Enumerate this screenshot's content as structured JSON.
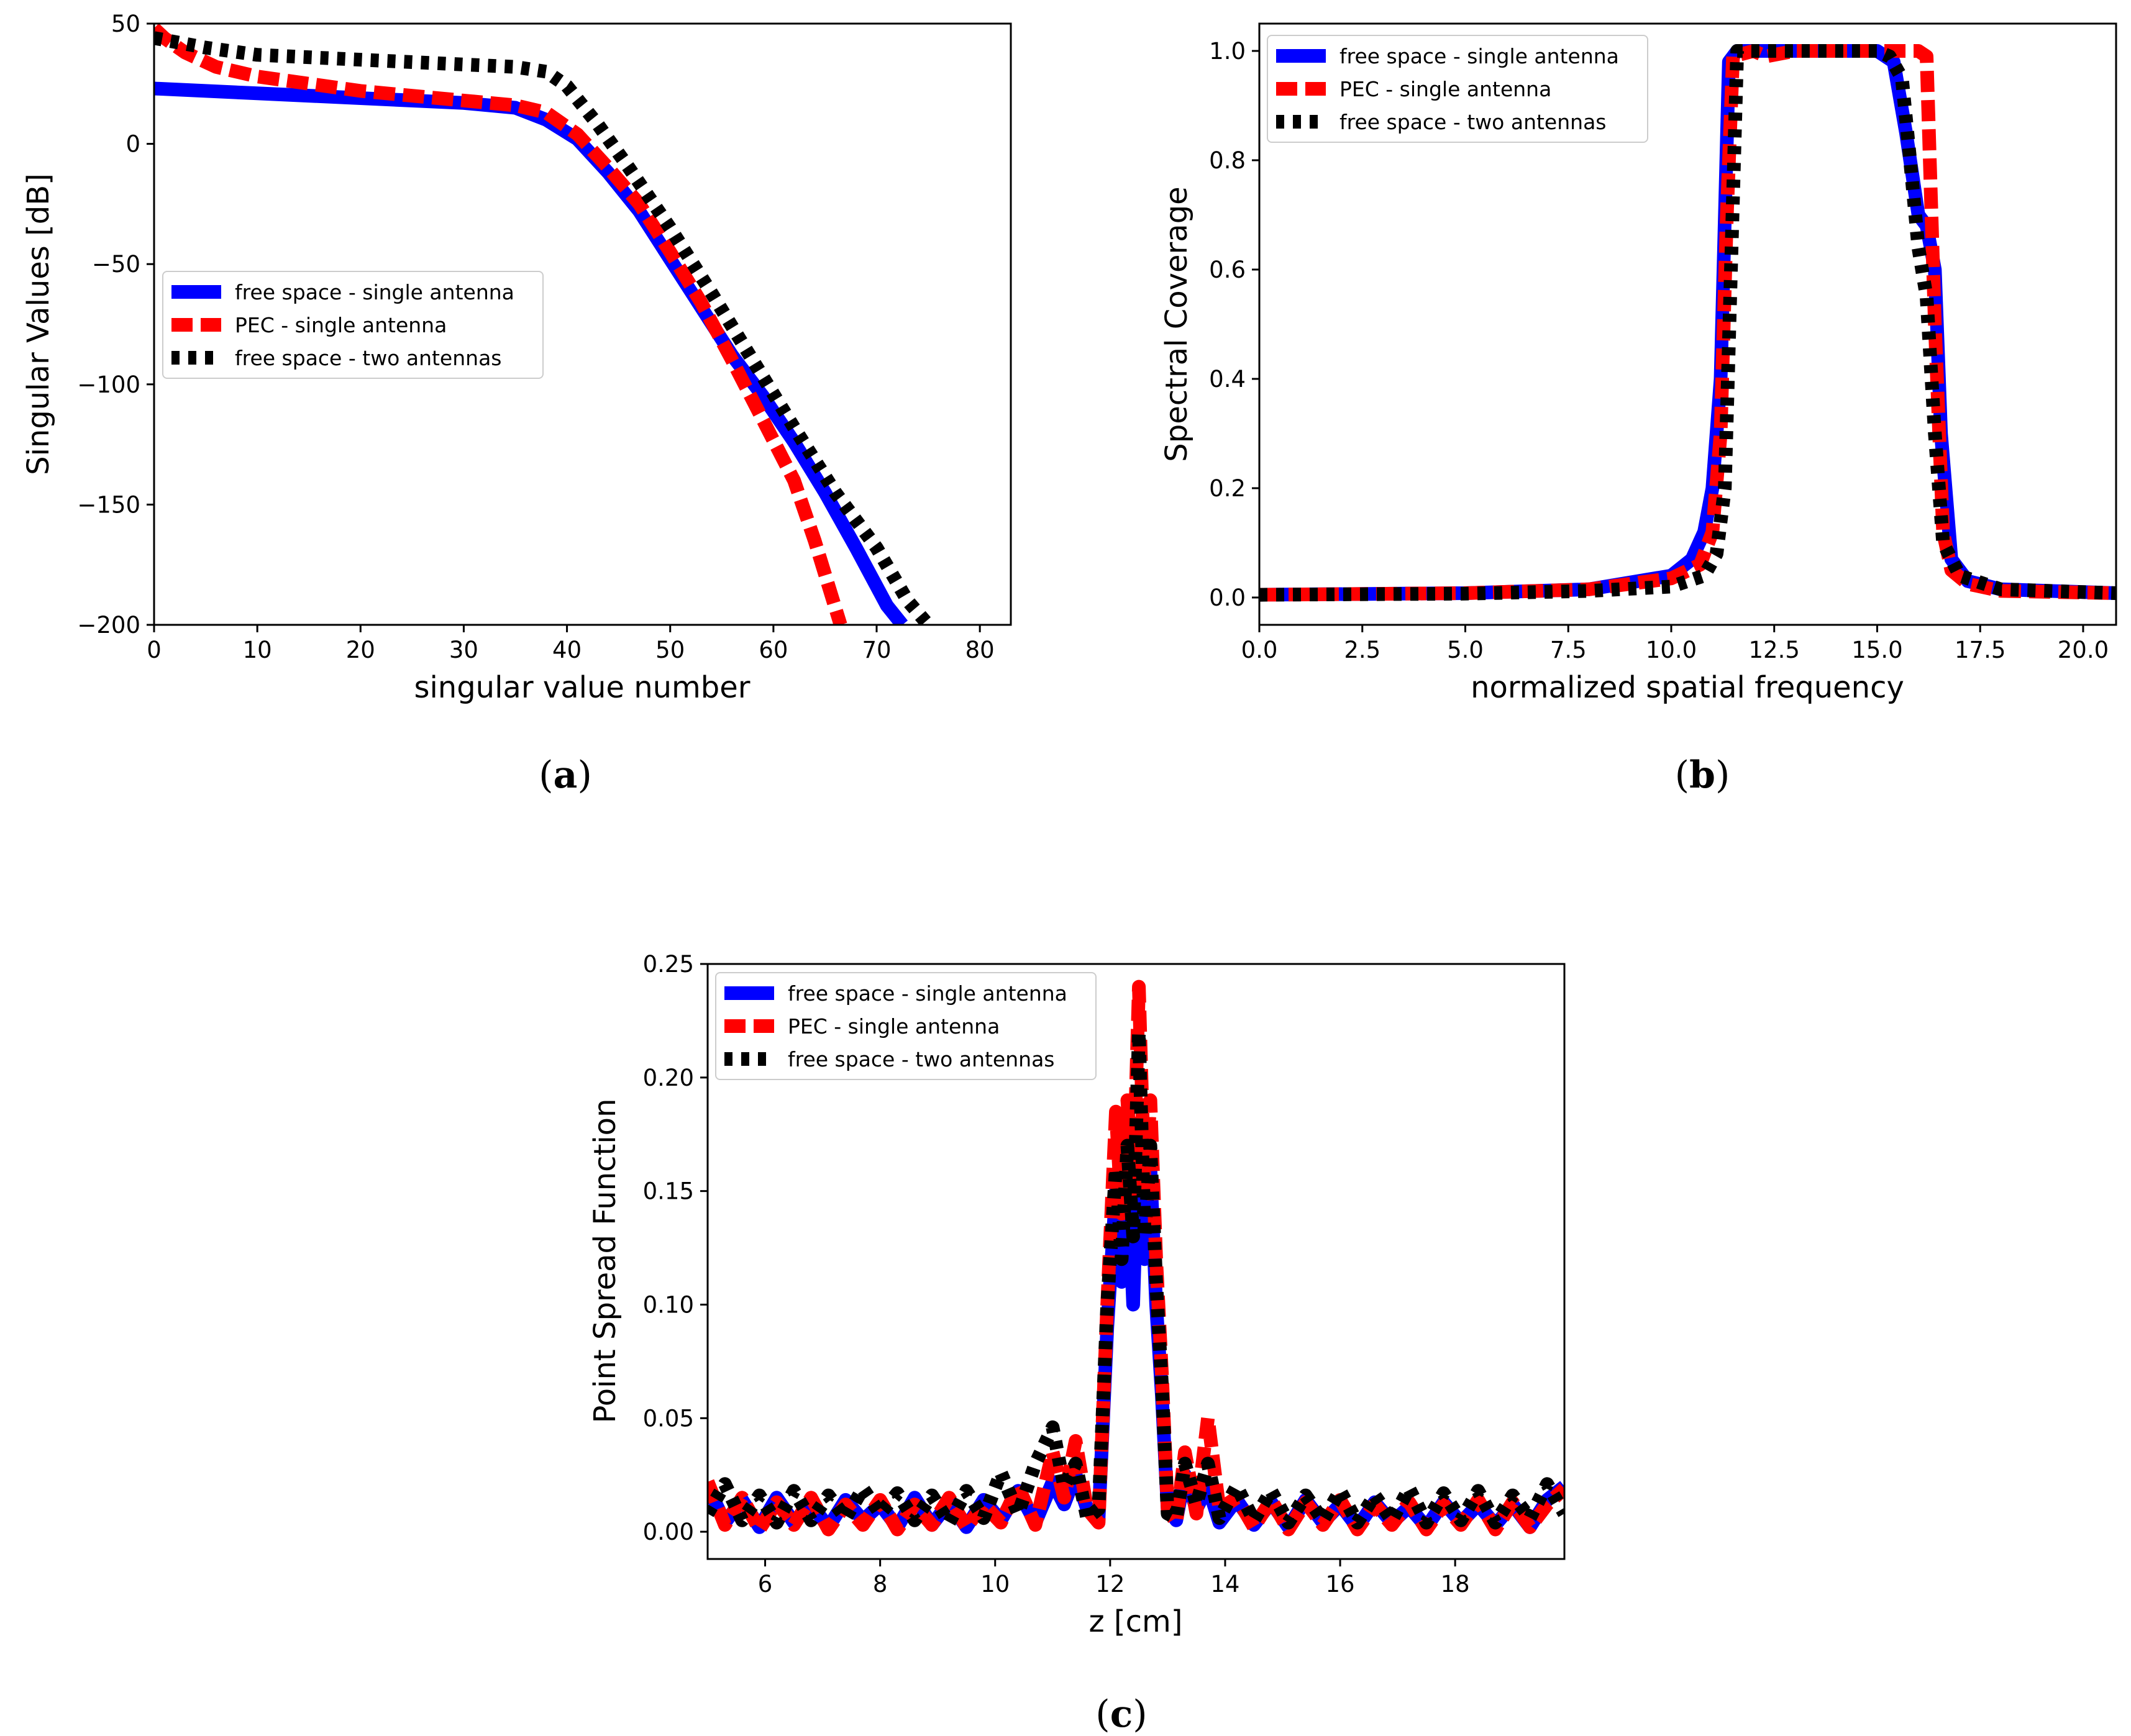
{
  "colors": {
    "blue": "#0000ff",
    "red": "#ff0000",
    "black": "#000000"
  },
  "legend": [
    "free space - single antenna",
    "PEC - single antenna",
    "free space - two antennas"
  ],
  "chart_data": [
    {
      "id": "a",
      "type": "line",
      "caption": {
        "open": "(",
        "letter": "a",
        "close": ")"
      },
      "xlabel": "singular value number",
      "ylabel": "Singular Values [dB]",
      "xlim": [
        0,
        83
      ],
      "ylim": [
        -200,
        50
      ],
      "xticks": [
        0,
        10,
        20,
        30,
        40,
        50,
        60,
        70,
        80
      ],
      "xtick_labels": [
        "0",
        "10",
        "20",
        "30",
        "40",
        "50",
        "60",
        "70",
        "80"
      ],
      "yticks": [
        50,
        0,
        -50,
        -100,
        -150,
        -200
      ],
      "ytick_labels": [
        "50",
        "0",
        "−50",
        "−100",
        "−150",
        "−200"
      ],
      "legend_position": "center-left",
      "series": [
        {
          "name": "free space - single antenna",
          "style": "solid",
          "x": [
            0,
            10,
            20,
            30,
            35,
            38,
            41,
            44,
            47,
            50,
            53,
            56,
            59,
            62,
            65,
            68,
            71,
            72.5
          ],
          "y": [
            23,
            21,
            19,
            17,
            15,
            10,
            2,
            -12,
            -28,
            -48,
            -68,
            -88,
            -105,
            -124,
            -145,
            -168,
            -192,
            -200
          ]
        },
        {
          "name": "PEC - single antenna",
          "style": "dashed",
          "x": [
            0,
            1,
            3,
            6,
            10,
            15,
            20,
            25,
            30,
            35,
            38,
            41,
            44,
            47,
            50,
            53,
            56,
            59,
            62,
            64,
            66.5
          ],
          "y": [
            48,
            44,
            38,
            32,
            28,
            25,
            22,
            20,
            18,
            16,
            13,
            4,
            -10,
            -25,
            -45,
            -66,
            -90,
            -115,
            -140,
            -165,
            -200
          ]
        },
        {
          "name": "free space - two antennas",
          "style": "dotted",
          "x": [
            0,
            5,
            10,
            20,
            30,
            35,
            38,
            40,
            43,
            46,
            50,
            54,
            58,
            62,
            66,
            70,
            73,
            75
          ],
          "y": [
            44,
            40,
            37,
            35,
            33,
            32,
            30,
            24,
            8,
            -10,
            -35,
            -62,
            -90,
            -118,
            -145,
            -168,
            -190,
            -200
          ]
        }
      ]
    },
    {
      "id": "b",
      "type": "line",
      "caption": {
        "open": "(",
        "letter": "b",
        "close": ")"
      },
      "xlabel": "normalized spatial frequency",
      "ylabel": "Spectral Coverage",
      "xlim": [
        0,
        20.8
      ],
      "ylim": [
        -0.05,
        1.05
      ],
      "xticks": [
        0,
        2.5,
        5,
        7.5,
        10,
        12.5,
        15,
        17.5,
        20
      ],
      "xtick_labels": [
        "0.0",
        "2.5",
        "5.0",
        "7.5",
        "10.0",
        "12.5",
        "15.0",
        "17.5",
        "20.0"
      ],
      "yticks": [
        0,
        0.2,
        0.4,
        0.6,
        0.8,
        1.0
      ],
      "ytick_labels": [
        "0.0",
        "0.2",
        "0.4",
        "0.6",
        "0.8",
        "1.0"
      ],
      "legend_position": "top-left",
      "series": [
        {
          "name": "free space - single antenna",
          "style": "solid",
          "x": [
            0,
            5,
            8,
            10,
            10.5,
            10.8,
            11,
            11.2,
            11.4,
            11.6,
            15,
            15.4,
            15.7,
            16,
            16.2,
            16.4,
            16.55,
            16.8,
            17.2,
            18,
            20.8
          ],
          "y": [
            0.005,
            0.008,
            0.015,
            0.04,
            0.07,
            0.12,
            0.2,
            0.4,
            0.98,
            1.0,
            1.0,
            0.98,
            0.85,
            0.7,
            0.68,
            0.6,
            0.3,
            0.07,
            0.03,
            0.015,
            0.008
          ]
        },
        {
          "name": "PEC - single antenna",
          "style": "dashed",
          "x": [
            0,
            5,
            8,
            10,
            10.7,
            11,
            11.2,
            11.35,
            11.5,
            12,
            12.3,
            13,
            15,
            16,
            16.2,
            16.4,
            16.6,
            16.8,
            17.2,
            18,
            20.8
          ],
          "y": [
            0.005,
            0.008,
            0.015,
            0.035,
            0.06,
            0.12,
            0.3,
            0.7,
            0.99,
            1.0,
            0.99,
            1.0,
            1.0,
            1.0,
            0.99,
            0.5,
            0.12,
            0.05,
            0.025,
            0.012,
            0.008
          ]
        },
        {
          "name": "free space - two antennas",
          "style": "dotted",
          "x": [
            0,
            5,
            8,
            10,
            10.8,
            11.1,
            11.3,
            11.45,
            11.6,
            15,
            15.3,
            15.6,
            15.8,
            16,
            16.2,
            16.4,
            16.6,
            17,
            18,
            20.8
          ],
          "y": [
            0.005,
            0.007,
            0.012,
            0.02,
            0.04,
            0.08,
            0.2,
            0.6,
            1.0,
            1.0,
            0.99,
            0.95,
            0.8,
            0.64,
            0.55,
            0.3,
            0.1,
            0.04,
            0.015,
            0.008
          ]
        }
      ]
    },
    {
      "id": "c",
      "type": "line",
      "caption": {
        "open": "(",
        "letter": "c",
        "close": ")"
      },
      "xlabel": "z [cm]",
      "ylabel": "Point Spread Function",
      "xlim": [
        5,
        19.9
      ],
      "ylim": [
        -0.012,
        0.25
      ],
      "xticks": [
        6,
        8,
        10,
        12,
        14,
        16,
        18
      ],
      "xtick_labels": [
        "6",
        "8",
        "10",
        "12",
        "14",
        "16",
        "18"
      ],
      "yticks": [
        0,
        0.05,
        0.1,
        0.15,
        0.2,
        0.25
      ],
      "ytick_labels": [
        "0.00",
        "0.05",
        "0.10",
        "0.15",
        "0.20",
        "0.25"
      ],
      "legend_position": "top-left",
      "series": [
        {
          "name": "free space - single antenna",
          "style": "solid",
          "x": [
            5.0,
            5.3,
            5.6,
            5.9,
            6.2,
            6.5,
            6.8,
            7.1,
            7.4,
            7.7,
            8.0,
            8.3,
            8.6,
            8.9,
            9.2,
            9.5,
            9.8,
            10.1,
            10.4,
            10.7,
            11.0,
            11.2,
            11.4,
            11.6,
            11.8,
            11.95,
            12.1,
            12.2,
            12.3,
            12.4,
            12.5,
            12.6,
            12.7,
            12.8,
            12.9,
            13.0,
            13.15,
            13.3,
            13.5,
            13.7,
            13.9,
            14.2,
            14.5,
            14.8,
            15.1,
            15.4,
            15.7,
            16.0,
            16.3,
            16.6,
            16.9,
            17.2,
            17.5,
            17.8,
            18.1,
            18.4,
            18.7,
            19.0,
            19.3,
            19.6,
            19.9
          ],
          "y": [
            0.02,
            0.004,
            0.014,
            0.002,
            0.015,
            0.004,
            0.012,
            0.002,
            0.014,
            0.005,
            0.012,
            0.002,
            0.015,
            0.003,
            0.013,
            0.002,
            0.014,
            0.005,
            0.018,
            0.004,
            0.022,
            0.012,
            0.025,
            0.01,
            0.006,
            0.09,
            0.15,
            0.11,
            0.16,
            0.1,
            0.18,
            0.12,
            0.16,
            0.1,
            0.06,
            0.01,
            0.005,
            0.025,
            0.01,
            0.02,
            0.004,
            0.014,
            0.003,
            0.013,
            0.002,
            0.014,
            0.004,
            0.012,
            0.002,
            0.013,
            0.004,
            0.011,
            0.002,
            0.013,
            0.004,
            0.012,
            0.003,
            0.012,
            0.002,
            0.014,
            0.02
          ]
        },
        {
          "name": "PEC - single antenna",
          "style": "dashed",
          "x": [
            5.0,
            5.3,
            5.6,
            5.9,
            6.2,
            6.5,
            6.8,
            7.1,
            7.4,
            7.7,
            8.0,
            8.3,
            8.6,
            8.9,
            9.2,
            9.5,
            9.8,
            10.1,
            10.4,
            10.7,
            11.0,
            11.2,
            11.4,
            11.6,
            11.8,
            11.95,
            12.1,
            12.2,
            12.3,
            12.4,
            12.5,
            12.6,
            12.7,
            12.8,
            12.9,
            13.0,
            13.15,
            13.3,
            13.5,
            13.7,
            13.9,
            14.2,
            14.5,
            14.8,
            15.1,
            15.4,
            15.7,
            16.0,
            16.3,
            16.6,
            16.9,
            17.2,
            17.5,
            17.8,
            18.1,
            18.4,
            18.7,
            19.0,
            19.3,
            19.6,
            19.9
          ],
          "y": [
            0.022,
            0.003,
            0.015,
            0.001,
            0.013,
            0.003,
            0.015,
            0.001,
            0.012,
            0.003,
            0.014,
            0.001,
            0.012,
            0.003,
            0.015,
            0.002,
            0.012,
            0.004,
            0.02,
            0.003,
            0.035,
            0.015,
            0.04,
            0.01,
            0.004,
            0.1,
            0.185,
            0.14,
            0.19,
            0.15,
            0.24,
            0.15,
            0.19,
            0.12,
            0.07,
            0.01,
            0.004,
            0.035,
            0.008,
            0.05,
            0.01,
            0.015,
            0.002,
            0.014,
            0.001,
            0.013,
            0.003,
            0.014,
            0.001,
            0.012,
            0.003,
            0.013,
            0.001,
            0.012,
            0.003,
            0.014,
            0.001,
            0.013,
            0.002,
            0.012,
            0.019
          ]
        },
        {
          "name": "free space - two antennas",
          "style": "dotted",
          "x": [
            5.0,
            5.3,
            5.6,
            5.9,
            6.2,
            6.5,
            6.8,
            7.1,
            7.4,
            7.7,
            8.0,
            8.3,
            8.6,
            8.9,
            9.2,
            9.5,
            9.8,
            10.1,
            10.4,
            10.7,
            11.0,
            11.2,
            11.4,
            11.6,
            11.8,
            11.95,
            12.1,
            12.2,
            12.3,
            12.4,
            12.5,
            12.6,
            12.7,
            12.8,
            12.9,
            13.0,
            13.15,
            13.3,
            13.5,
            13.7,
            13.9,
            14.2,
            14.5,
            14.8,
            15.1,
            15.4,
            15.7,
            16.0,
            16.3,
            16.6,
            16.9,
            17.2,
            17.5,
            17.8,
            18.1,
            18.4,
            18.7,
            19.0,
            19.3,
            19.6,
            19.9
          ],
          "y": [
            0.008,
            0.021,
            0.005,
            0.016,
            0.004,
            0.018,
            0.005,
            0.016,
            0.006,
            0.019,
            0.008,
            0.017,
            0.005,
            0.016,
            0.004,
            0.018,
            0.006,
            0.026,
            0.008,
            0.03,
            0.046,
            0.02,
            0.03,
            0.006,
            0.01,
            0.1,
            0.16,
            0.12,
            0.17,
            0.13,
            0.22,
            0.13,
            0.17,
            0.11,
            0.065,
            0.008,
            0.006,
            0.03,
            0.012,
            0.03,
            0.006,
            0.02,
            0.005,
            0.018,
            0.004,
            0.016,
            0.005,
            0.018,
            0.004,
            0.016,
            0.005,
            0.019,
            0.004,
            0.017,
            0.005,
            0.018,
            0.004,
            0.016,
            0.006,
            0.021,
            0.008
          ]
        }
      ]
    }
  ]
}
